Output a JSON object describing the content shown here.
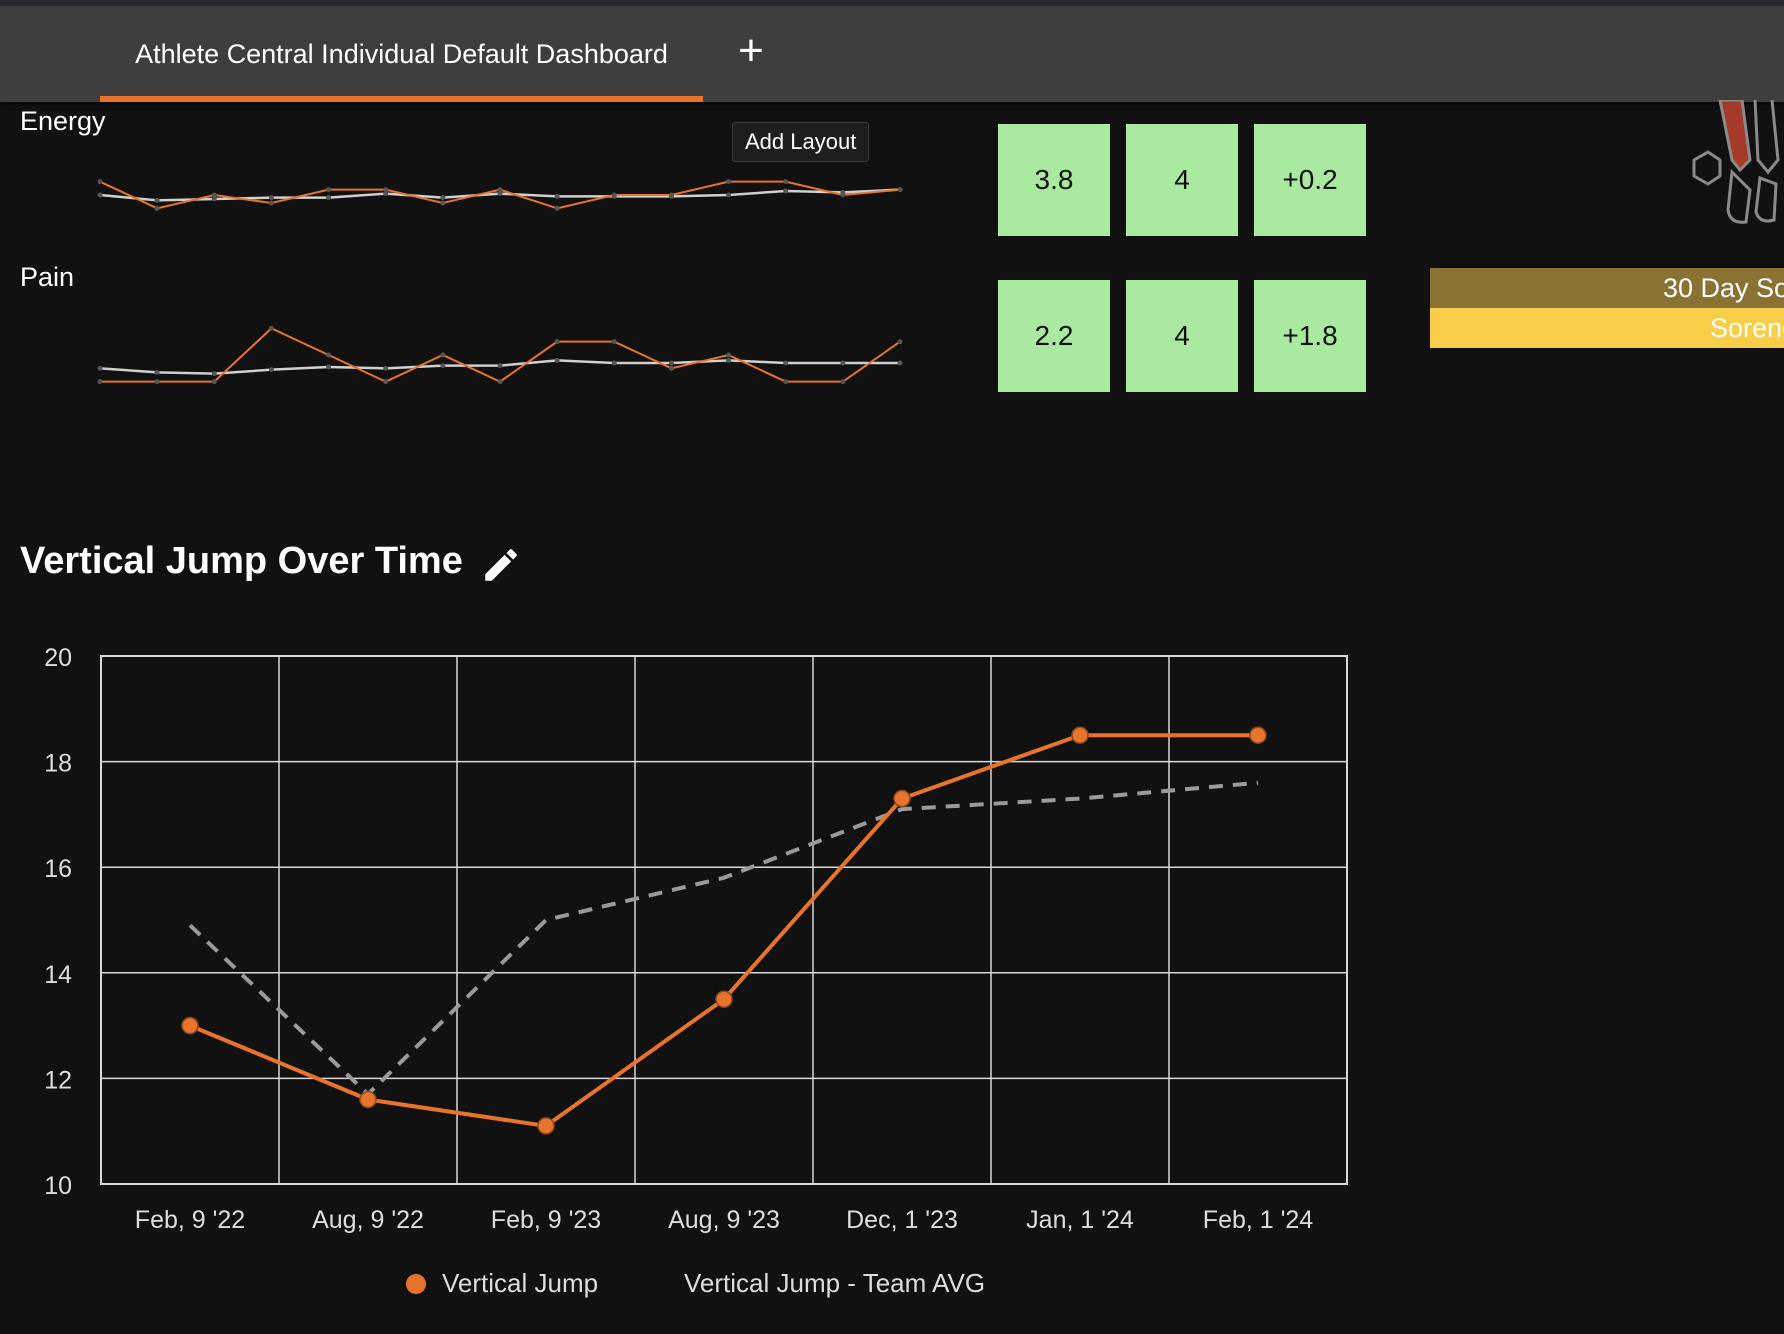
{
  "tabs": {
    "active_label": "Athlete Central Individual Default Dashboard",
    "add_symbol": "+"
  },
  "tooltip": {
    "text": "Add Layout"
  },
  "metrics": [
    {
      "label": "Energy",
      "tiles": [
        "3.8",
        "4",
        "+0.2"
      ],
      "athlete": [
        3.0,
        2.0,
        2.5,
        2.2,
        2.7,
        2.7,
        2.2,
        2.7,
        2.0,
        2.5,
        2.5,
        3.0,
        3.0,
        2.5,
        2.7
      ],
      "team": [
        2.5,
        2.3,
        2.35,
        2.4,
        2.4,
        2.55,
        2.4,
        2.55,
        2.45,
        2.45,
        2.45,
        2.5,
        2.65,
        2.6,
        2.7
      ]
    },
    {
      "label": "Pain",
      "tiles": [
        "2.2",
        "4",
        "+1.8"
      ],
      "athlete": [
        1.5,
        1.5,
        1.5,
        3.5,
        2.5,
        1.5,
        2.5,
        1.5,
        3.0,
        3.0,
        2.0,
        2.5,
        1.5,
        1.5,
        3.0
      ],
      "team": [
        2.0,
        1.85,
        1.8,
        1.95,
        2.05,
        2.0,
        2.1,
        2.1,
        2.3,
        2.2,
        2.2,
        2.3,
        2.2,
        2.2,
        2.2
      ]
    }
  ],
  "soreness": {
    "top_text": "30 Day So",
    "bottom_text": "Sorenc"
  },
  "chart_title": "Vertical Jump Over Time",
  "chart_data": {
    "type": "line",
    "categories": [
      "Feb, 9 '22",
      "Aug, 9 '22",
      "Feb, 9 '23",
      "Aug, 9 '23",
      "Dec, 1 '23",
      "Jan, 1 '24",
      "Feb, 1 '24"
    ],
    "series": [
      {
        "name": "Vertical Jump",
        "values": [
          13.0,
          11.6,
          11.1,
          13.5,
          17.3,
          18.5,
          18.5
        ],
        "color": "#e8742c",
        "style": "solid"
      },
      {
        "name": "Vertical Jump - Team AVG",
        "values": [
          14.9,
          11.7,
          15.0,
          15.8,
          17.1,
          17.3,
          17.6
        ],
        "color": "#9a9a9a",
        "style": "dashed"
      }
    ],
    "yticks": [
      20,
      18,
      16,
      14,
      12,
      10
    ],
    "ylim": [
      10,
      20
    ],
    "grid": true,
    "legend": "bottom"
  },
  "colors": {
    "accent": "#e8742c",
    "tile_green": "#aaeaa0",
    "team_gray": "#9a9a9a"
  },
  "icons": {
    "edit": "pencil-icon"
  }
}
